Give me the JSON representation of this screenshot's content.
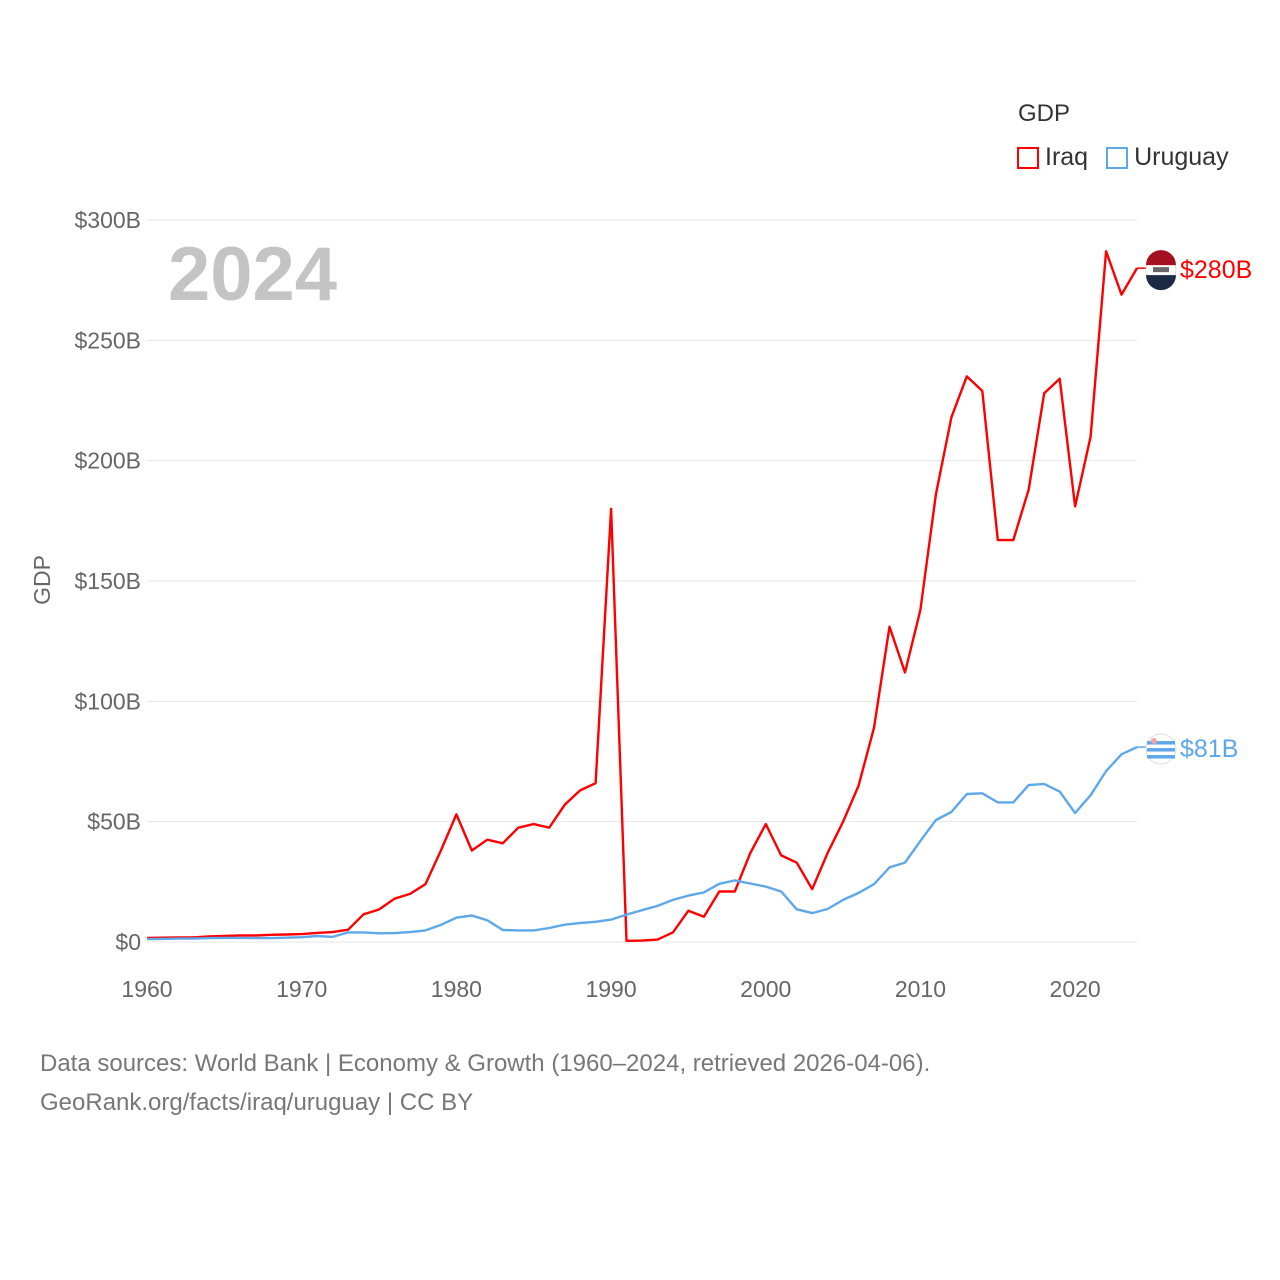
{
  "chart_data": {
    "type": "line",
    "title": "",
    "year_label": "2024",
    "ylabel": "GDP",
    "xlabel": "",
    "ylim": [
      0,
      300
    ],
    "xlim": [
      1960,
      2024
    ],
    "x_ticks": [
      1960,
      1970,
      1980,
      1990,
      2000,
      2010,
      2020
    ],
    "x_tick_labels": [
      "1960",
      "1970",
      "1980",
      "1990",
      "2000",
      "2010",
      "2020"
    ],
    "y_ticks": [
      0,
      50,
      100,
      150,
      200,
      250,
      300
    ],
    "y_tick_labels": [
      "$0",
      "$50B",
      "$100B",
      "$150B",
      "$200B",
      "$250B",
      "$300B"
    ],
    "grid": true,
    "legend": {
      "title": "GDP",
      "placement": "top-right"
    },
    "x": [
      1960,
      1961,
      1962,
      1963,
      1964,
      1965,
      1966,
      1967,
      1968,
      1969,
      1970,
      1971,
      1972,
      1973,
      1974,
      1975,
      1976,
      1977,
      1978,
      1979,
      1980,
      1981,
      1982,
      1983,
      1984,
      1985,
      1986,
      1987,
      1988,
      1989,
      1990,
      1991,
      1992,
      1993,
      1994,
      1995,
      1996,
      1997,
      1998,
      1999,
      2000,
      2001,
      2002,
      2003,
      2004,
      2005,
      2006,
      2007,
      2008,
      2009,
      2010,
      2011,
      2012,
      2013,
      2014,
      2015,
      2016,
      2017,
      2018,
      2019,
      2020,
      2021,
      2022,
      2023,
      2024
    ],
    "series": [
      {
        "name": "Iraq",
        "color": "#ff0000",
        "end_label": "$280B",
        "values": [
          1.7,
          1.8,
          1.9,
          1.9,
          2.3,
          2.5,
          2.7,
          2.7,
          3.0,
          3.1,
          3.3,
          3.8,
          4.1,
          5.1,
          11.5,
          13.5,
          18,
          20,
          24,
          38,
          53,
          38,
          42.5,
          41,
          47.5,
          49,
          47.5,
          57,
          63,
          66,
          180,
          0.5,
          0.6,
          1,
          4,
          13,
          10.5,
          21,
          21,
          37,
          49,
          36,
          33,
          22,
          37,
          50,
          65,
          89,
          131,
          112,
          138,
          186,
          218,
          235,
          229,
          167,
          167,
          188,
          228,
          234,
          181,
          210,
          287,
          269,
          280
        ]
      },
      {
        "name": "Uruguay",
        "color": "#5ea8ea",
        "end_label": "$81B",
        "values": [
          1.2,
          1.3,
          1.4,
          1.4,
          1.6,
          1.7,
          1.7,
          1.6,
          1.6,
          1.8,
          2.0,
          2.5,
          2.1,
          4.0,
          4.0,
          3.6,
          3.7,
          4.1,
          4.8,
          7.1,
          10.1,
          11.0,
          9.0,
          5.0,
          4.8,
          4.8,
          5.8,
          7.2,
          7.9,
          8.4,
          9.3,
          11.4,
          13.2,
          15.0,
          17.5,
          19.3,
          20.6,
          24.2,
          25.6,
          24.3,
          23.0,
          21.0,
          13.6,
          12.0,
          13.7,
          17.5,
          20.4,
          24.0,
          31.0,
          33.0,
          42.0,
          50.7,
          54.0,
          61.5,
          61.8,
          58.0,
          58.0,
          65.2,
          65.7,
          62.5,
          53.6,
          61.0,
          71.0,
          78.0,
          81.0
        ]
      }
    ]
  },
  "source": {
    "line1": "Data sources: World Bank | Economy & Growth (1960–2024, retrieved 2026-04-06).",
    "line2": "GeoRank.org/facts/iraq/uruguay | CC BY"
  }
}
